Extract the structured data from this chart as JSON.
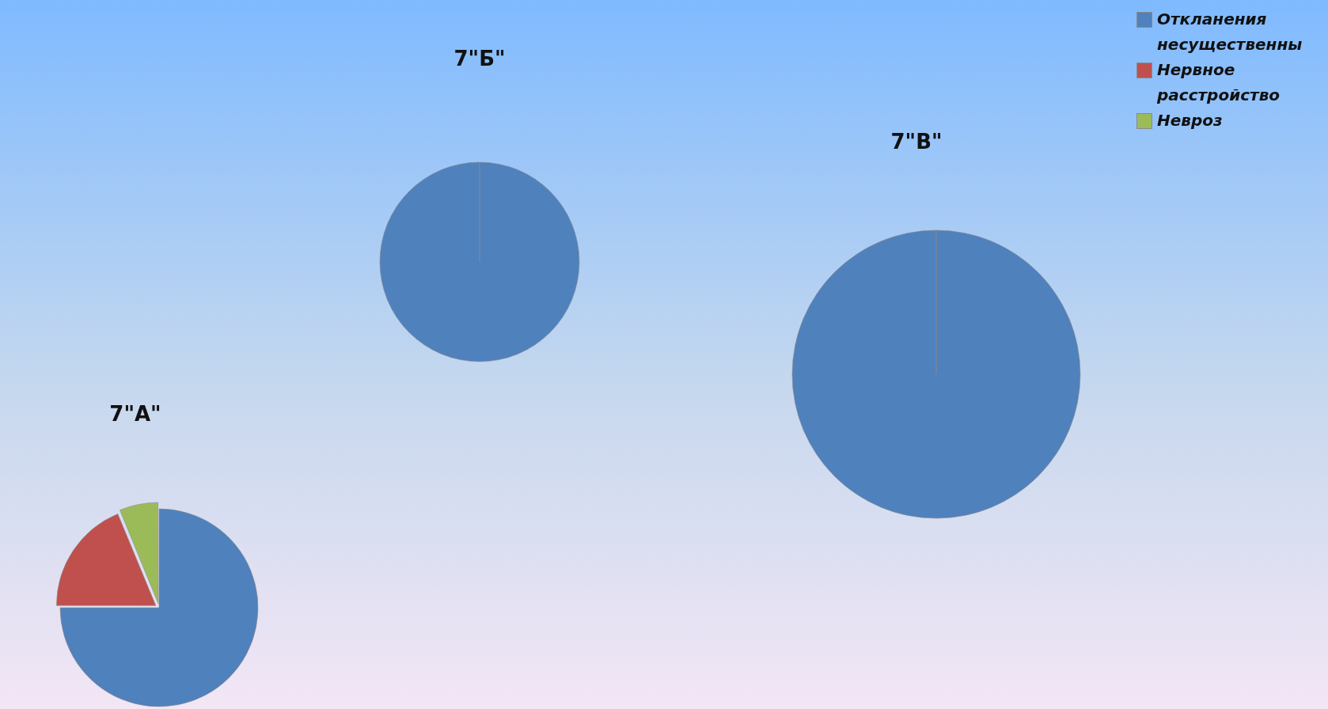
{
  "chart_data": [
    {
      "type": "pie",
      "title": "7\"А\"",
      "categories": [
        null,
        null,
        null
      ],
      "values": [
        75,
        18.75,
        6.25
      ],
      "colors": [
        "#4f81bd",
        "#c0504d",
        "#9bbb59"
      ]
    },
    {
      "type": "pie",
      "title": "7\"Б\"",
      "categories": [
        null,
        null,
        null
      ],
      "values": [
        100,
        0,
        0
      ],
      "colors": [
        "#4f81bd",
        "#c0504d",
        "#9bbb59"
      ]
    },
    {
      "type": "pie",
      "title": "7\"В\"",
      "categories": [
        "Откланения несущественны",
        "Нервное расстройство",
        "Невроз"
      ],
      "values": [
        100,
        0,
        0
      ],
      "colors": [
        "#4f81bd",
        "#c0504d",
        "#9bbb59"
      ],
      "legend": "top right"
    }
  ]
}
